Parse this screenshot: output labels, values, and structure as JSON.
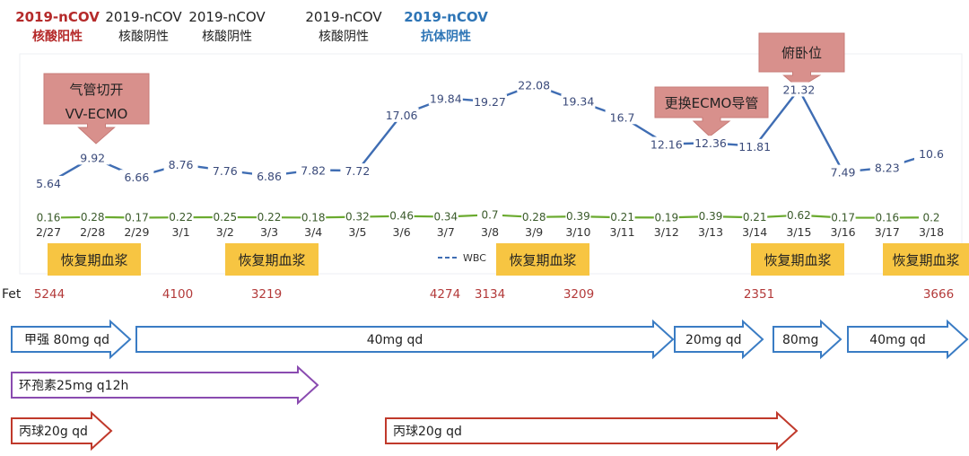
{
  "chart_data": {
    "type": "line",
    "categories": [
      "2/27",
      "2/28",
      "2/29",
      "3/1",
      "3/2",
      "3/3",
      "3/4",
      "3/5",
      "3/6",
      "3/7",
      "3/8",
      "3/9",
      "3/10",
      "3/11",
      "3/12",
      "3/13",
      "3/14",
      "3/15",
      "3/16",
      "3/17",
      "3/18"
    ],
    "series": [
      {
        "name": "WBC",
        "color": "#3f6db3",
        "values": [
          5.64,
          9.92,
          6.66,
          8.76,
          7.76,
          6.86,
          7.82,
          7.72,
          17.06,
          19.84,
          19.27,
          22.08,
          19.34,
          16.7,
          12.16,
          12.36,
          11.81,
          21.32,
          7.49,
          8.23,
          10.6
        ]
      },
      {
        "name": "",
        "color": "#6aaa2e",
        "values": [
          0.16,
          0.28,
          0.17,
          0.22,
          0.25,
          0.22,
          0.18,
          0.32,
          0.46,
          0.34,
          0.7,
          0.28,
          0.39,
          0.21,
          0.19,
          0.39,
          0.21,
          0.62,
          0.17,
          0.16,
          0.2
        ]
      }
    ],
    "legend": {
      "position": "bottom-center",
      "entries": [
        "WBC"
      ]
    },
    "grid": false
  },
  "status_headers": [
    {
      "line1": "2019-nCOV",
      "line2": "核酸阳性",
      "color": "#b52a2a"
    },
    {
      "line1": "2019-nCOV",
      "line2": "核酸阴性",
      "color": "#222222"
    },
    {
      "line1": "2019-nCOV",
      "line2": "核酸阴性",
      "color": "#222222"
    },
    {
      "line1": "2019-nCOV",
      "line2": "核酸阴性",
      "color": "#222222"
    },
    {
      "line1": "2019-nCOV",
      "line2": "抗体阴性",
      "color": "#2e75b6"
    }
  ],
  "callouts": [
    {
      "lines": [
        "气管切开",
        "VV-ECMO"
      ]
    },
    {
      "lines": [
        "更换ECMO导管"
      ]
    },
    {
      "lines": [
        "俯卧位"
      ]
    }
  ],
  "plasma_label": "恢复期血浆",
  "fet": {
    "label": "Fet",
    "values": [
      "5244",
      "4100",
      "3219",
      "4274",
      "3134",
      "3209",
      "2351",
      "3666"
    ]
  },
  "treatments": [
    {
      "drug": "甲强",
      "arrows": [
        "甲强 80mg qd",
        "40mg qd",
        "20mg qd",
        "80mg",
        "40mg qd"
      ],
      "color": "#3a7cc4"
    },
    {
      "drug": "环孢素",
      "arrows": [
        "环孢素25mg q12h"
      ],
      "color": "#8a4bb0"
    },
    {
      "drug": "丙球",
      "arrows": [
        "丙球20g qd",
        "丙球20g qd"
      ],
      "color": "#c0392b"
    }
  ]
}
